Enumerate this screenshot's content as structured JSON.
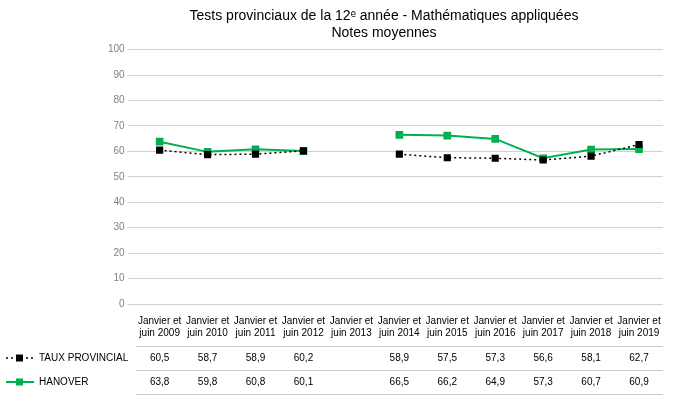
{
  "chart_data": {
    "type": "line",
    "title": "Tests provinciaux de la 12ᵉ année - Mathématiques appliquées\nNotes moyennes",
    "categories": [
      "Janvier et\njuin 2009",
      "Janvier et\njuin 2010",
      "Janvier et\njuin 2011",
      "Janvier et\njuin 2012",
      "Janvier et\njuin 2013",
      "Janvier et\njuin 2014",
      "Janvier et\njuin 2015",
      "Janvier et\njuin 2016",
      "Janvier et\njuin 2017",
      "Janvier et\njuin 2018",
      "Janvier et\njuin 2019"
    ],
    "series": [
      {
        "name": "TAUX PROVINCIAL",
        "color": "#000000",
        "line_style": "dotted",
        "marker": "square",
        "values": [
          60.5,
          58.7,
          58.9,
          60.2,
          null,
          58.9,
          57.5,
          57.3,
          56.6,
          58.1,
          62.7
        ],
        "value_labels": [
          "60,5",
          "58,7",
          "58,9",
          "60,2",
          null,
          "58,9",
          "57,5",
          "57,3",
          "56,6",
          "58,1",
          "62,7"
        ]
      },
      {
        "name": "HANOVER",
        "color": "#00b050",
        "line_style": "solid",
        "marker": "square",
        "values": [
          63.8,
          59.8,
          60.8,
          60.1,
          null,
          66.5,
          66.2,
          64.9,
          57.3,
          60.7,
          60.9
        ],
        "value_labels": [
          "63,8",
          "59,8",
          "60,8",
          "60,1",
          null,
          "66,5",
          "66,2",
          "64,9",
          "57,3",
          "60,7",
          "60,9"
        ]
      }
    ],
    "ylim": [
      0,
      100
    ],
    "yticks": [
      0,
      10,
      20,
      30,
      40,
      50,
      60,
      70,
      80,
      90,
      100
    ],
    "grid": true,
    "legend": "bottom",
    "data_labels": true
  }
}
